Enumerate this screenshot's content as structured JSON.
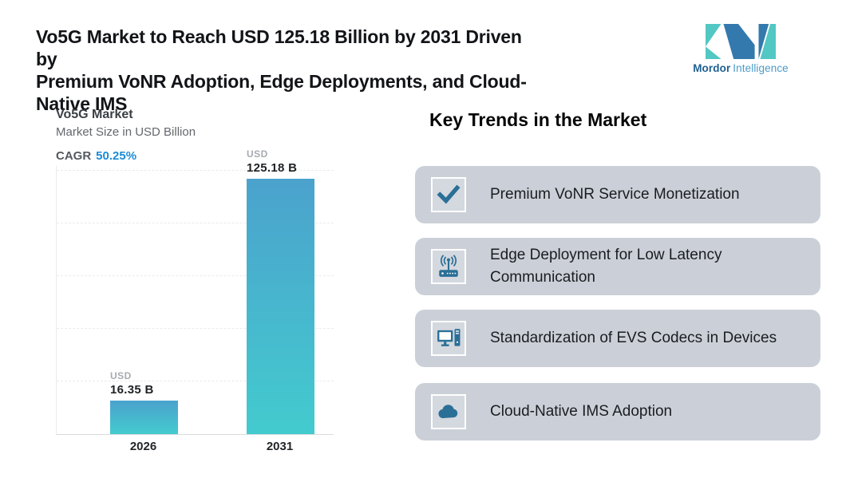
{
  "page": {
    "title_line1": "Vo5G Market to Reach USD 125.18 Billion by 2031 Driven by",
    "title_line2": "Premium VoNR Adoption, Edge Deployments, and Cloud-Native IMS"
  },
  "logo": {
    "name": "Mordor Intelligence",
    "text_bold": "Mordor",
    "text_light": "Intelligence",
    "teal": "#52C7C3",
    "blue": "#3379AD"
  },
  "chart": {
    "title": "Vo5G Market",
    "subtitle": "Market Size in USD Billion",
    "cagr_label": "CAGR",
    "cagr_value": "50.25%",
    "cagr_color": "#1A8CD8"
  },
  "chart_data": {
    "type": "bar",
    "title": "Vo5G Market",
    "ylabel": "Market Size in USD Billion",
    "categories": [
      "2026",
      "2031"
    ],
    "values": [
      16.35,
      125.18
    ],
    "value_labels": [
      [
        "USD",
        "16.35 B"
      ],
      [
        "USD",
        "125.18 B"
      ]
    ],
    "unit": "USD Billion",
    "cagr": "50.25%",
    "ylim": [
      0,
      132
    ],
    "grid": true,
    "legend": "none",
    "bar_gradient_top": "#4BA2CD",
    "bar_gradient_bottom": "#43CBCE"
  },
  "trends": {
    "heading": "Key Trends in the Market",
    "card_bg": "#CBD0D8",
    "icon_color": "#2A6F96",
    "items": [
      {
        "icon": "check-icon",
        "label": "Premium VoNR Service Monetization"
      },
      {
        "icon": "router-icon",
        "label": "Edge Deployment for Low Latency Communication"
      },
      {
        "icon": "desktop-icon",
        "label": "Standardization of EVS Codecs in Devices"
      },
      {
        "icon": "cloud-icon",
        "label": "Cloud-Native IMS Adoption"
      }
    ]
  }
}
